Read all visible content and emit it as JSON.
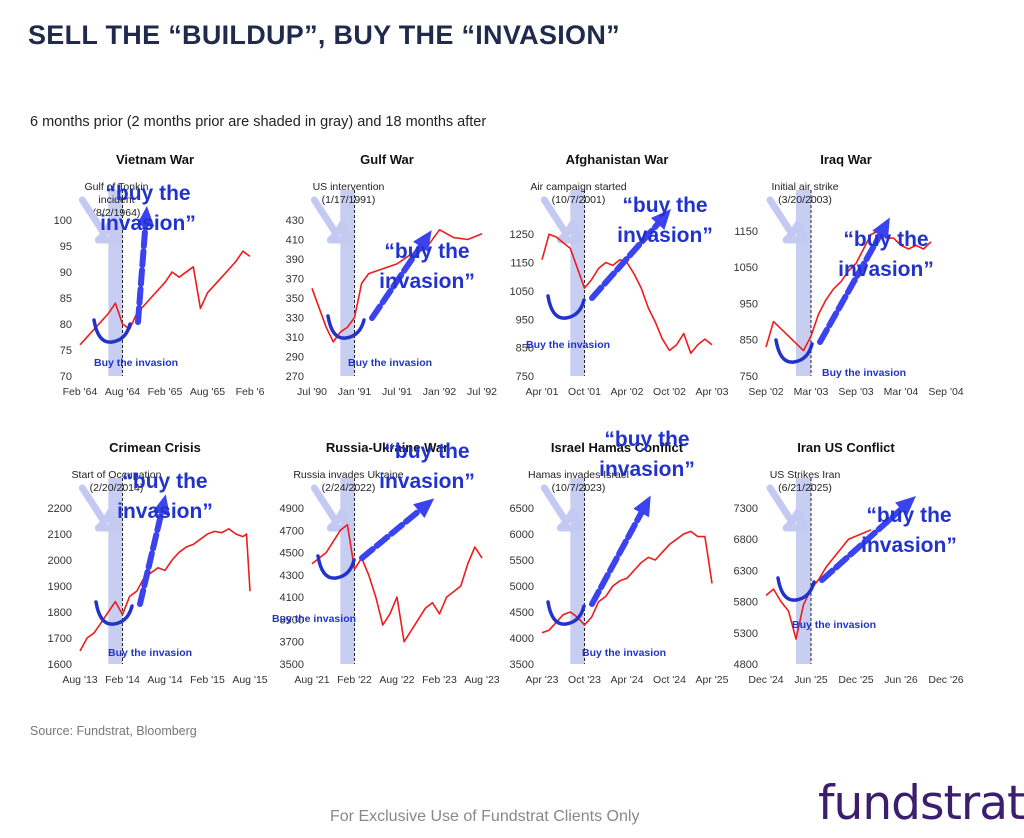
{
  "page": {
    "title": "SELL THE “BUILDUP”, BUY THE “INVASION”",
    "subtitle": "6 months prior (2 months prior are shaded in gray) and 18 months after",
    "source": "Source: Fundstrat, Bloomberg",
    "footer": "For Exclusive Use of Fundstrat Clients Only",
    "logo": "fundstrat"
  },
  "colors": {
    "series": "#ee1c1c",
    "shade": "#c7cef2",
    "annotation": "#2233cc",
    "arrow": "#3a43ee",
    "title": "#1f2a4d"
  },
  "chart_data": [
    {
      "type": "line",
      "title": "Vietnam War",
      "event": [
        "Gulf of Tonkin",
        "incident",
        "(8/2/1964)"
      ],
      "annotation": [
        "“buy the",
        "invasion”"
      ],
      "buy_label": "Buy the invasion",
      "yticks": [
        70,
        75,
        80,
        85,
        90,
        95,
        100
      ],
      "ylim": [
        70,
        100
      ],
      "xticks": [
        "Feb '64",
        "Aug '64",
        "Feb '65",
        "Aug '65",
        "Feb '6"
      ],
      "xlim": [
        0,
        24
      ],
      "event_x": 6,
      "shade": [
        4,
        6
      ],
      "x": [
        0,
        2,
        4,
        5,
        6,
        7,
        8,
        10,
        12,
        13,
        14,
        16,
        17,
        18,
        20,
        22,
        23,
        24
      ],
      "y": [
        76,
        79,
        82,
        84,
        80,
        79,
        82,
        85,
        88,
        90,
        89,
        91,
        83,
        86,
        89,
        92,
        94,
        93
      ]
    },
    {
      "type": "line",
      "title": "Gulf War",
      "event": [
        "US intervention",
        "(1/17/1991)"
      ],
      "annotation": [
        "“buy the",
        "invasion”"
      ],
      "buy_label": "Buy the invasion",
      "yticks": [
        270,
        290,
        310,
        330,
        350,
        370,
        390,
        410,
        430
      ],
      "ylim": [
        270,
        430
      ],
      "xticks": [
        "Jul '90",
        "Jan '91",
        "Jul '91",
        "Jan '92",
        "Jul '92"
      ],
      "xlim": [
        0,
        24
      ],
      "event_x": 6,
      "shade": [
        4,
        6
      ],
      "x": [
        0,
        1,
        2,
        3,
        4,
        5,
        6,
        7,
        8,
        10,
        12,
        13,
        14,
        16,
        18,
        20,
        22,
        24
      ],
      "y": [
        360,
        340,
        320,
        305,
        315,
        320,
        330,
        365,
        375,
        380,
        385,
        390,
        395,
        400,
        420,
        412,
        410,
        416
      ]
    },
    {
      "type": "line",
      "title": "Afghanistan War",
      "event": [
        "Air campaign started",
        "(10/7/2001)"
      ],
      "annotation": [
        "“buy the",
        "invasion”"
      ],
      "buy_label": "Buy the invasion",
      "yticks": [
        750,
        850,
        950,
        1050,
        1150,
        1250
      ],
      "ylim": [
        750,
        1300
      ],
      "xticks": [
        "Apr '01",
        "Oct '01",
        "Apr '02",
        "Oct '02",
        "Apr '03"
      ],
      "xlim": [
        0,
        24
      ],
      "event_x": 6,
      "shade": [
        4,
        6
      ],
      "x": [
        0,
        1,
        2,
        3,
        4,
        5,
        6,
        7,
        8,
        9,
        10,
        11,
        12,
        13,
        14,
        15,
        16,
        17,
        18,
        19,
        20,
        21,
        22,
        23,
        24
      ],
      "y": [
        1160,
        1250,
        1240,
        1220,
        1200,
        1130,
        1060,
        1090,
        1130,
        1150,
        1140,
        1160,
        1150,
        1110,
        1060,
        990,
        940,
        880,
        840,
        860,
        900,
        830,
        860,
        880,
        860
      ]
    },
    {
      "type": "line",
      "title": "Iraq War",
      "event": [
        "Initial air strike",
        "(3/20/2003)"
      ],
      "annotation": [
        "“buy the",
        "invasion”"
      ],
      "buy_label": "Buy the invasion",
      "yticks": [
        750,
        850,
        950,
        1050,
        1150
      ],
      "ylim": [
        750,
        1180
      ],
      "xticks": [
        "Sep '02",
        "Mar '03",
        "Sep '03",
        "Mar '04",
        "Sep '04"
      ],
      "xlim": [
        0,
        24
      ],
      "event_x": 6,
      "shade": [
        4,
        6
      ],
      "x": [
        0,
        1,
        2,
        3,
        4,
        5,
        6,
        7,
        8,
        9,
        10,
        11,
        12,
        13,
        14,
        15,
        16,
        17,
        18,
        19,
        20,
        21,
        22
      ],
      "y": [
        830,
        900,
        880,
        860,
        840,
        820,
        860,
        920,
        960,
        990,
        1010,
        1040,
        1060,
        1100,
        1140,
        1150,
        1130,
        1130,
        1110,
        1100,
        1110,
        1100,
        1120
      ]
    },
    {
      "type": "line",
      "title": "Crimean Crisis",
      "event": [
        "Start of Occupation",
        "(2/20/2014)"
      ],
      "annotation": [
        "“buy the",
        "invasion”"
      ],
      "buy_label": "Buy the invasion",
      "yticks": [
        1600,
        1700,
        1800,
        1900,
        2000,
        2100,
        2200
      ],
      "ylim": [
        1600,
        2200
      ],
      "xticks": [
        "Aug '13",
        "Feb '14",
        "Aug '14",
        "Feb '15",
        "Aug '15"
      ],
      "xlim": [
        0,
        24
      ],
      "event_x": 6,
      "shade": [
        4,
        6
      ],
      "x": [
        0,
        1,
        2,
        3,
        4,
        5,
        6,
        7,
        8,
        9,
        10,
        11,
        12,
        13,
        14,
        15,
        16,
        17,
        18,
        19,
        20,
        21,
        22,
        23,
        23.5,
        24
      ],
      "y": [
        1650,
        1700,
        1720,
        1760,
        1800,
        1840,
        1790,
        1860,
        1880,
        1930,
        1950,
        1970,
        1960,
        2000,
        2030,
        2050,
        2060,
        2080,
        2100,
        2110,
        2105,
        2120,
        2100,
        2090,
        2100,
        1880
      ]
    },
    {
      "type": "line",
      "title": "Russia-Ukraine War",
      "event": [
        "Russia invades Ukraine",
        "(2/24/2022)"
      ],
      "annotation": [
        "“buy the",
        "invasion”"
      ],
      "buy_label": "Buy the invasion",
      "yticks": [
        3500,
        3700,
        3900,
        4100,
        4300,
        4500,
        4700,
        4900
      ],
      "ylim": [
        3500,
        4900
      ],
      "xticks": [
        "Aug '21",
        "Feb '22",
        "Aug '22",
        "Feb '23",
        "Aug '23"
      ],
      "xlim": [
        0,
        24
      ],
      "event_x": 6,
      "shade": [
        4,
        6
      ],
      "x": [
        0,
        1,
        2,
        3,
        4,
        5,
        6,
        7,
        8,
        9,
        10,
        11,
        12,
        13,
        14,
        15,
        16,
        17,
        18,
        19,
        20,
        21,
        22,
        23,
        24
      ],
      "y": [
        4400,
        4450,
        4500,
        4600,
        4700,
        4750,
        4350,
        4450,
        4300,
        4100,
        3850,
        3950,
        4100,
        3700,
        3800,
        3900,
        4000,
        4050,
        3950,
        4100,
        4150,
        4200,
        4400,
        4550,
        4450
      ]
    },
    {
      "type": "line",
      "title": "Israel Hamas Conflict",
      "event": [
        "Hamas invades Israel",
        "(10/7/2023)"
      ],
      "annotation": [
        "“buy the",
        "invasion”"
      ],
      "buy_label": "Buy the invasion",
      "yticks": [
        3500,
        4000,
        4500,
        5000,
        5500,
        6000,
        6500
      ],
      "ylim": [
        3500,
        6500
      ],
      "xticks": [
        "Apr '23",
        "Oct '23",
        "Apr '24",
        "Oct '24",
        "Apr '25"
      ],
      "xlim": [
        0,
        24
      ],
      "event_x": 6,
      "shade": [
        4,
        6
      ],
      "x": [
        0,
        1,
        2,
        3,
        4,
        5,
        6,
        7,
        8,
        9,
        10,
        11,
        12,
        13,
        14,
        15,
        16,
        17,
        18,
        19,
        20,
        21,
        22,
        23,
        23.5,
        24
      ],
      "y": [
        4100,
        4150,
        4300,
        4450,
        4500,
        4400,
        4250,
        4400,
        4700,
        4800,
        5000,
        5100,
        5150,
        5300,
        5450,
        5550,
        5500,
        5650,
        5800,
        5900,
        6000,
        6050,
        5950,
        5950,
        5500,
        5050
      ]
    },
    {
      "type": "line",
      "title": "Iran US Conflict",
      "event": [
        "US Strikes Iran",
        "(6/21/2025)"
      ],
      "annotation": [
        "“buy the",
        "invasion”"
      ],
      "buy_label": "Buy the invasion",
      "yticks": [
        4800,
        5300,
        5800,
        6300,
        6800,
        7300
      ],
      "ylim": [
        4800,
        7300
      ],
      "xticks": [
        "Dec '24",
        "Jun '25",
        "Dec '25",
        "Jun '26",
        "Dec '26"
      ],
      "xlim": [
        0,
        24
      ],
      "event_x": 6,
      "shade": [
        4,
        6
      ],
      "x": [
        0,
        1,
        2,
        3,
        4,
        5,
        6,
        7,
        8,
        9,
        10,
        11,
        12,
        13,
        14
      ],
      "y": [
        5900,
        6000,
        5800,
        5650,
        5200,
        5750,
        6000,
        6150,
        6350,
        6500,
        6650,
        6800,
        6850,
        6900,
        6950
      ]
    }
  ]
}
